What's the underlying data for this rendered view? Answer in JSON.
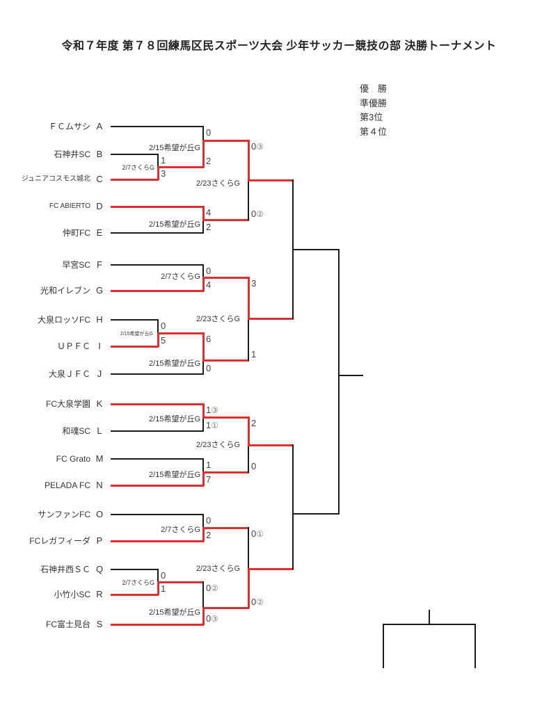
{
  "title": "令和７年度 第７８回練馬区民スポーツ大会 少年サッカー競技の部 決勝トーナメント",
  "legend": [
    "優　勝",
    "準優勝",
    "第3位",
    "第４位"
  ],
  "colors": {
    "line": "#1a1a1a",
    "winner_path": "#e12f2f",
    "score": "#444444",
    "pk": "#808080",
    "label": "#333333"
  },
  "bracket": {
    "teams": [
      {
        "id": "A",
        "name": "ＦＣムサシ"
      },
      {
        "id": "B",
        "name": "石神井SC"
      },
      {
        "id": "C",
        "name": "ジュニアコスモス城北"
      },
      {
        "id": "D",
        "name": "FC ABIERTO"
      },
      {
        "id": "E",
        "name": "仲町FC"
      },
      {
        "id": "F",
        "name": "早宮SC"
      },
      {
        "id": "G",
        "name": "光和イレブン"
      },
      {
        "id": "H",
        "name": "大泉ロッソFC"
      },
      {
        "id": "I",
        "name": "ＵＰＦＣ"
      },
      {
        "id": "J",
        "name": "大泉ＪＦＣ"
      },
      {
        "id": "K",
        "name": "FC大泉学園"
      },
      {
        "id": "L",
        "name": "和魂SC"
      },
      {
        "id": "M",
        "name": "FC Grato"
      },
      {
        "id": "N",
        "name": "PELADA FC"
      },
      {
        "id": "O",
        "name": "サンファンFC"
      },
      {
        "id": "P",
        "name": "FCレガフィーダ"
      },
      {
        "id": "Q",
        "name": "石神井西ＳＣ"
      },
      {
        "id": "R",
        "name": "小竹小SC"
      },
      {
        "id": "S",
        "name": "FC富士見台"
      }
    ],
    "matches": [
      {
        "id": "R1-BC",
        "round": 1,
        "venue": "2/7さくらG",
        "slots": [
          "B",
          "C"
        ],
        "scores": [
          "1",
          "3"
        ],
        "winner": "C"
      },
      {
        "id": "R1-HI",
        "round": 1,
        "venue": "2/15希望が丘G",
        "slots": [
          "H",
          "I"
        ],
        "scores": [
          "0",
          "5"
        ],
        "winner": "I"
      },
      {
        "id": "R1-QR",
        "round": 1,
        "venue": "2/7さくらG",
        "slots": [
          "Q",
          "R"
        ],
        "scores": [
          "0",
          "1"
        ],
        "winner": "R"
      },
      {
        "id": "R2-1",
        "round": 2,
        "venue": "2/15希望が丘G",
        "slots": [
          "A",
          "C"
        ],
        "scores": [
          "0",
          "2"
        ],
        "winner": "C"
      },
      {
        "id": "R2-2",
        "round": 2,
        "venue": "2/15希望が丘G",
        "slots": [
          "D",
          "E"
        ],
        "scores": [
          "4",
          "2"
        ],
        "winner": "D"
      },
      {
        "id": "R2-3",
        "round": 2,
        "venue": "2/7さくらG",
        "slots": [
          "F",
          "G"
        ],
        "scores": [
          "0",
          "4"
        ],
        "winner": "G"
      },
      {
        "id": "R2-4",
        "round": 2,
        "venue": "2/15希望が丘G",
        "slots": [
          "I",
          "J"
        ],
        "scores": [
          "6",
          "0"
        ],
        "winner": "I"
      },
      {
        "id": "R2-5",
        "round": 2,
        "venue": "2/15希望が丘G",
        "slots": [
          "K",
          "L"
        ],
        "scores": [
          "1③",
          "1①"
        ],
        "winner": "K"
      },
      {
        "id": "R2-6",
        "round": 2,
        "venue": "2/15希望が丘G",
        "slots": [
          "M",
          "N"
        ],
        "scores": [
          "1",
          "7"
        ],
        "winner": "N"
      },
      {
        "id": "R2-7",
        "round": 2,
        "venue": "2/7さくらG",
        "slots": [
          "O",
          "P"
        ],
        "scores": [
          "0",
          "2"
        ],
        "winner": "P"
      },
      {
        "id": "R2-8",
        "round": 2,
        "venue": "2/15希望が丘G",
        "slots": [
          "R",
          "S"
        ],
        "scores": [
          "0②",
          "0③"
        ],
        "winner": "S"
      },
      {
        "id": "QF-1",
        "round": 3,
        "venue": "2/23さくらG",
        "slots": [
          "C",
          "D"
        ],
        "scores": [
          "0③",
          "0②"
        ],
        "winner": "C"
      },
      {
        "id": "QF-2",
        "round": 3,
        "venue": "2/23さくらG",
        "slots": [
          "G",
          "I"
        ],
        "scores": [
          "3",
          "1"
        ],
        "winner": "G"
      },
      {
        "id": "QF-3",
        "round": 3,
        "venue": "2/23さくらG",
        "slots": [
          "K",
          "N"
        ],
        "scores": [
          "2",
          "0"
        ],
        "winner": "K"
      },
      {
        "id": "QF-4",
        "round": 3,
        "venue": "2/23さくらG",
        "slots": [
          "P",
          "S"
        ],
        "scores": [
          "0①",
          "0②"
        ],
        "winner": "S"
      },
      {
        "id": "SF-1",
        "round": 4,
        "venue": "",
        "slots": [
          "C",
          "G"
        ],
        "scores": [
          "",
          ""
        ],
        "winner": ""
      },
      {
        "id": "SF-2",
        "round": 4,
        "venue": "",
        "slots": [
          "K",
          "S"
        ],
        "scores": [
          "",
          ""
        ],
        "winner": ""
      },
      {
        "id": "F",
        "round": 5,
        "venue": "",
        "slots": [
          "",
          ""
        ],
        "scores": [
          "",
          ""
        ],
        "winner": ""
      }
    ]
  }
}
